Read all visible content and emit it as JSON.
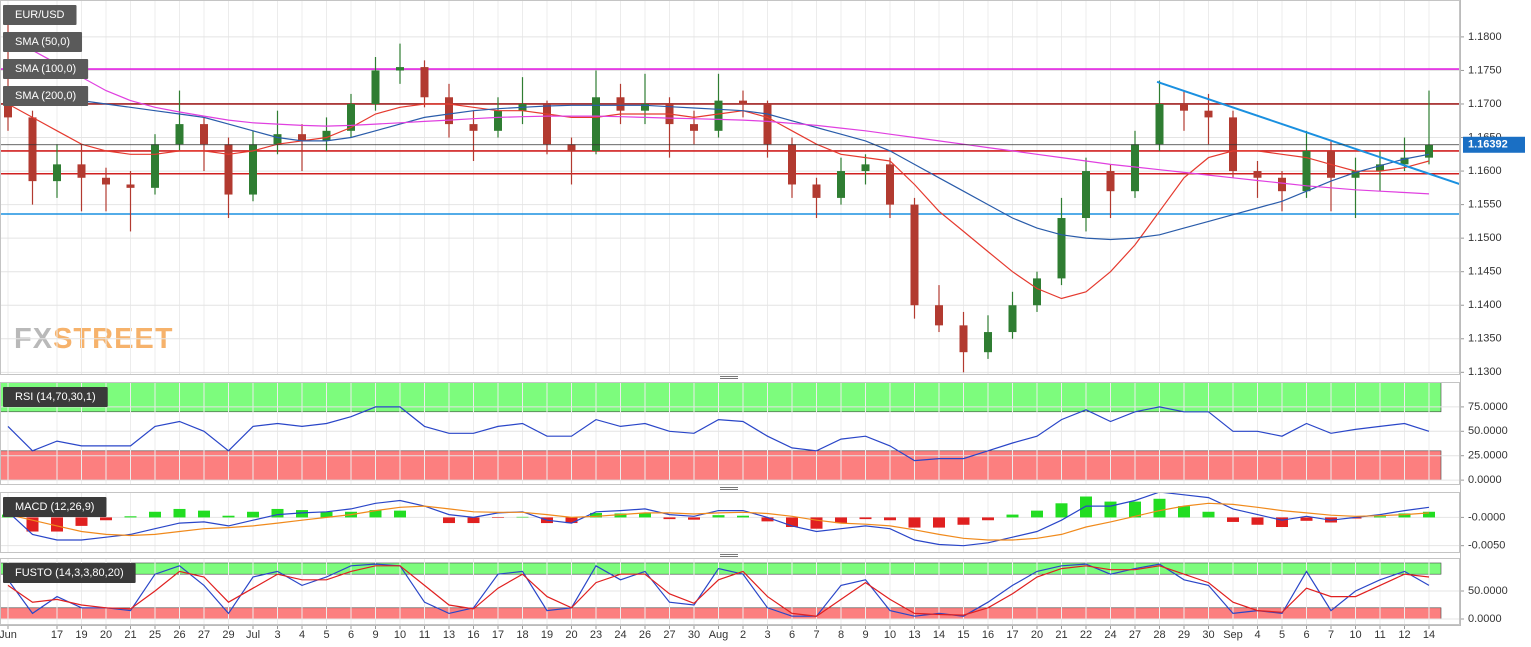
{
  "chart_data": [
    {
      "type": "candlestick",
      "title": "EUR/USD",
      "categories": [
        "Jun",
        null,
        "17",
        "19",
        "20",
        "21",
        "25",
        "26",
        "27",
        "29",
        "Jul",
        "3",
        "4",
        "5",
        "6",
        "9",
        "10",
        "11",
        "13",
        "16",
        "17",
        "18",
        "19",
        "20",
        "23",
        "24",
        "26",
        "27",
        "30",
        "Aug",
        "2",
        "3",
        "6",
        "7",
        "8",
        "9",
        "10",
        "13",
        "14",
        "15",
        "16",
        "17",
        "20",
        "21",
        "22",
        "24",
        "27",
        "28",
        "29",
        "30",
        "Sep",
        "4",
        "5",
        "6",
        "7",
        "10",
        "11",
        "12",
        "14"
      ],
      "open": [
        1.171,
        1.168,
        1.1585,
        1.161,
        1.159,
        1.158,
        1.1575,
        1.164,
        1.167,
        1.164,
        1.1565,
        1.164,
        1.1655,
        1.1645,
        1.166,
        1.17,
        1.175,
        1.1755,
        1.171,
        1.167,
        1.166,
        1.169,
        1.17,
        1.164,
        1.163,
        1.171,
        1.169,
        1.17,
        1.167,
        1.166,
        1.1705,
        1.17,
        1.164,
        1.158,
        1.156,
        1.16,
        1.161,
        1.155,
        1.14,
        1.137,
        1.133,
        1.136,
        1.14,
        1.144,
        1.153,
        1.16,
        1.157,
        1.164,
        1.17,
        1.169,
        1.168,
        1.16,
        1.159,
        1.157,
        1.163,
        1.159,
        1.16,
        1.161,
        1.162
      ],
      "high": [
        1.1835,
        1.169,
        1.164,
        1.164,
        1.1605,
        1.16,
        1.1655,
        1.172,
        1.168,
        1.165,
        1.166,
        1.169,
        1.167,
        1.168,
        1.1715,
        1.177,
        1.179,
        1.1765,
        1.173,
        1.169,
        1.171,
        1.174,
        1.1705,
        1.165,
        1.175,
        1.173,
        1.1745,
        1.171,
        1.169,
        1.1745,
        1.172,
        1.1705,
        1.165,
        1.159,
        1.162,
        1.1625,
        1.162,
        1.156,
        1.143,
        1.139,
        1.1385,
        1.142,
        1.145,
        1.156,
        1.162,
        1.161,
        1.166,
        1.1735,
        1.172,
        1.1715,
        1.169,
        1.1615,
        1.16,
        1.166,
        1.1645,
        1.162,
        1.163,
        1.165,
        1.172
      ],
      "low": [
        1.166,
        1.155,
        1.156,
        1.154,
        1.154,
        1.151,
        1.1565,
        1.163,
        1.16,
        1.153,
        1.1555,
        1.1625,
        1.16,
        1.163,
        1.165,
        1.169,
        1.173,
        1.1695,
        1.165,
        1.1615,
        1.165,
        1.167,
        1.1625,
        1.158,
        1.1625,
        1.167,
        1.167,
        1.162,
        1.164,
        1.165,
        1.168,
        1.162,
        1.156,
        1.153,
        1.155,
        1.158,
        1.153,
        1.138,
        1.136,
        1.13,
        1.132,
        1.135,
        1.139,
        1.143,
        1.151,
        1.153,
        1.156,
        1.163,
        1.166,
        1.164,
        1.159,
        1.156,
        1.154,
        1.156,
        1.154,
        1.153,
        1.157,
        1.16,
        1.161
      ],
      "close": [
        1.168,
        1.1585,
        1.161,
        1.159,
        1.158,
        1.1575,
        1.164,
        1.167,
        1.164,
        1.1565,
        1.164,
        1.1655,
        1.1645,
        1.166,
        1.17,
        1.175,
        1.1755,
        1.171,
        1.167,
        1.166,
        1.169,
        1.17,
        1.164,
        1.163,
        1.171,
        1.169,
        1.17,
        1.167,
        1.166,
        1.1705,
        1.17,
        1.164,
        1.158,
        1.156,
        1.16,
        1.161,
        1.155,
        1.14,
        1.137,
        1.133,
        1.136,
        1.14,
        1.144,
        1.153,
        1.16,
        1.157,
        1.164,
        1.17,
        1.169,
        1.168,
        1.16,
        1.159,
        1.157,
        1.163,
        1.159,
        1.16,
        1.161,
        1.162,
        1.1639
      ],
      "up_color": "#2f7d32",
      "down_color": "#b23a30",
      "series": [
        {
          "name": "SMA (50,0)",
          "color": "#e53a2f",
          "values": [
            1.17,
            1.168,
            1.166,
            1.164,
            1.163,
            1.1625,
            1.1625,
            1.163,
            1.163,
            1.1625,
            1.163,
            1.164,
            1.1645,
            1.165,
            1.1665,
            1.1685,
            1.1695,
            1.17,
            1.17,
            1.1695,
            1.169,
            1.169,
            1.1685,
            1.168,
            1.168,
            1.1685,
            1.1685,
            1.1685,
            1.168,
            1.1685,
            1.169,
            1.168,
            1.166,
            1.164,
            1.1625,
            1.162,
            1.1615,
            1.158,
            1.154,
            1.151,
            1.148,
            1.145,
            1.1425,
            1.141,
            1.142,
            1.145,
            1.149,
            1.154,
            1.159,
            1.162,
            1.163,
            1.163,
            1.1625,
            1.162,
            1.161,
            1.16,
            1.16,
            1.1605,
            1.1615
          ]
        },
        {
          "name": "SMA (100,0)",
          "color": "#2a5caa",
          "values": [
            1.172,
            1.1715,
            1.171,
            1.1705,
            1.17,
            1.1695,
            1.169,
            1.1685,
            1.168,
            1.167,
            1.166,
            1.165,
            1.1645,
            1.1645,
            1.165,
            1.166,
            1.167,
            1.168,
            1.1685,
            1.169,
            1.1693,
            1.1695,
            1.1697,
            1.1698,
            1.1698,
            1.1698,
            1.1698,
            1.1696,
            1.1694,
            1.1692,
            1.169,
            1.1685,
            1.1675,
            1.1665,
            1.1655,
            1.1645,
            1.163,
            1.161,
            1.159,
            1.157,
            1.155,
            1.153,
            1.1515,
            1.1505,
            1.15,
            1.1498,
            1.15,
            1.1505,
            1.1515,
            1.1525,
            1.1535,
            1.1545,
            1.1555,
            1.157,
            1.1585,
            1.1598,
            1.1608,
            1.1618,
            1.1625
          ]
        },
        {
          "name": "SMA (200,0)",
          "color": "#e040e0",
          "values": [
            1.18,
            1.178,
            1.176,
            1.174,
            1.172,
            1.1705,
            1.1695,
            1.1688,
            1.1682,
            1.1676,
            1.1672,
            1.167,
            1.1668,
            1.1667,
            1.1668,
            1.167,
            1.1672,
            1.1674,
            1.1676,
            1.1678,
            1.168,
            1.1681,
            1.1682,
            1.1682,
            1.1682,
            1.1681,
            1.168,
            1.1679,
            1.1678,
            1.1677,
            1.1676,
            1.1674,
            1.1671,
            1.1668,
            1.1664,
            1.166,
            1.1655,
            1.165,
            1.1645,
            1.164,
            1.1635,
            1.163,
            1.1625,
            1.162,
            1.1615,
            1.161,
            1.1606,
            1.1602,
            1.1598,
            1.1594,
            1.159,
            1.1586,
            1.1582,
            1.1578,
            1.1575,
            1.1572,
            1.157,
            1.1568,
            1.1566
          ]
        }
      ],
      "levels": [
        {
          "value": 1.1752,
          "color": "#e020e0"
        },
        {
          "value": 1.17,
          "color": "#a02020"
        },
        {
          "value": 1.163,
          "color": "#d02020"
        },
        {
          "value": 1.1596,
          "color": "#d02020"
        },
        {
          "value": 1.1536,
          "color": "#1a90e0"
        }
      ],
      "trendlines": [
        {
          "x": [
            46.9,
            59.3
          ],
          "y": [
            1.1733,
            1.158
          ],
          "color": "#1a90e0"
        }
      ],
      "last_price": 1.16392,
      "last_color": "#1a6fc4",
      "logo": [
        "FX",
        "STREET"
      ],
      "ylim": [
        1.1296,
        1.1855
      ],
      "yticks": [
        {
          "value": 1.13,
          "label": "1.1300"
        },
        {
          "value": 1.135,
          "label": "1.1350"
        },
        {
          "value": 1.14,
          "label": "1.1400"
        },
        {
          "value": 1.145,
          "label": "1.1450"
        },
        {
          "value": 1.15,
          "label": "1.1500"
        },
        {
          "value": 1.155,
          "label": "1.1550"
        },
        {
          "value": 1.16,
          "label": "1.1600"
        },
        {
          "value": 1.165,
          "label": "1.1650"
        },
        {
          "value": 1.17,
          "label": "1.1700"
        },
        {
          "value": 1.175,
          "label": "1.1750"
        },
        {
          "value": 1.18,
          "label": "1.1800"
        }
      ],
      "grid": true
    },
    {
      "type": "line",
      "title": "RSI (14,70,30,1)",
      "series": [
        {
          "color": "#2a46c8",
          "values": [
            55,
            30,
            40,
            35,
            35,
            35,
            55,
            60,
            50,
            30,
            55,
            58,
            55,
            58,
            65,
            75,
            75,
            55,
            48,
            48,
            55,
            58,
            45,
            45,
            62,
            55,
            58,
            50,
            48,
            62,
            60,
            45,
            33,
            30,
            42,
            45,
            35,
            20,
            22,
            22,
            30,
            38,
            45,
            62,
            72,
            60,
            70,
            75,
            70,
            70,
            50,
            50,
            45,
            58,
            48,
            52,
            55,
            58,
            50
          ]
        }
      ],
      "zones": [
        {
          "from": 70,
          "to": 100,
          "color": "#7dfc7d"
        },
        {
          "from": 0,
          "to": 30,
          "color": "#fc7f7f"
        }
      ],
      "ylim": [
        -5,
        100.5
      ],
      "yticks": [
        {
          "value": 0,
          "label": "0.0000"
        },
        {
          "value": 25,
          "label": "25.0000"
        },
        {
          "value": 50,
          "label": "50.0000"
        },
        {
          "value": 75,
          "label": "75.0000"
        }
      ],
      "grid": true
    },
    {
      "type": "macd",
      "title": "MACD (12,26,9)",
      "series": [
        {
          "color": "#2a46c8",
          "values": [
            0.001,
            -0.003,
            -0.004,
            -0.004,
            -0.0035,
            -0.003,
            -0.002,
            -0.001,
            -0.0008,
            -0.0015,
            -0.0005,
            0.0005,
            0.0008,
            0.001,
            0.0015,
            0.0025,
            0.003,
            0.002,
            0.0005,
            0.0,
            0.0008,
            0.001,
            -0.0005,
            -0.001,
            0.001,
            0.0012,
            0.0015,
            0.0005,
            0.0002,
            0.0012,
            0.0012,
            0.0,
            -0.0015,
            -0.0025,
            -0.002,
            -0.0015,
            -0.002,
            -0.004,
            -0.0048,
            -0.005,
            -0.0045,
            -0.0035,
            -0.0025,
            -0.0005,
            0.002,
            0.002,
            0.003,
            0.0045,
            0.004,
            0.0035,
            0.0015,
            0.0005,
            -0.0005,
            0.0002,
            -0.0005,
            0.0,
            0.0005,
            0.0012,
            0.0018
          ]
        },
        {
          "color": "#f08a1c",
          "values": [
            0.0005,
            -0.0005,
            -0.0015,
            -0.0025,
            -0.003,
            -0.0032,
            -0.003,
            -0.0025,
            -0.002,
            -0.0018,
            -0.0015,
            -0.001,
            -0.0005,
            0.0,
            0.0005,
            0.0012,
            0.0018,
            0.002,
            0.0015,
            0.001,
            0.0009,
            0.0009,
            0.0005,
            0.0,
            0.0002,
            0.0005,
            0.0008,
            0.0008,
            0.0006,
            0.0008,
            0.0009,
            0.0007,
            0.0002,
            -0.0005,
            -0.001,
            -0.0012,
            -0.0015,
            -0.0022,
            -0.003,
            -0.0037,
            -0.004,
            -0.004,
            -0.0037,
            -0.003,
            -0.0017,
            -0.0008,
            0.0002,
            0.0012,
            0.002,
            0.0025,
            0.0023,
            0.0018,
            0.0012,
            0.0008,
            0.0004,
            0.0002,
            0.0003,
            0.0005,
            0.0008
          ]
        }
      ],
      "histogram": [
        0.0005,
        -0.0025,
        -0.0025,
        -0.0015,
        -0.0005,
        0.0002,
        0.001,
        0.0015,
        0.0012,
        0.0003,
        0.001,
        0.0015,
        0.0013,
        0.001,
        0.001,
        0.0013,
        0.0012,
        0.0,
        -0.001,
        -0.001,
        -0.0001,
        0.0001,
        -0.001,
        -0.001,
        0.0008,
        0.0007,
        0.0007,
        -0.0003,
        -0.0004,
        0.0004,
        0.0003,
        -0.0007,
        -0.0017,
        -0.002,
        -0.001,
        -0.0003,
        -0.0005,
        -0.0018,
        -0.0018,
        -0.0013,
        -0.0005,
        0.0005,
        0.0012,
        0.0025,
        0.0037,
        0.0028,
        0.0028,
        0.0033,
        0.002,
        0.001,
        -0.0008,
        -0.0013,
        -0.0017,
        -0.0006,
        -0.0009,
        -0.0002,
        0.0002,
        0.0007,
        0.001
      ],
      "hist_colors": [
        "#22dd22",
        "#e02020"
      ],
      "ylim": [
        -0.0063,
        0.0045
      ],
      "yticks": [
        {
          "value": 0,
          "label": "-0.0000"
        },
        {
          "value": -0.005,
          "label": "-0.0050"
        }
      ],
      "grid": true
    },
    {
      "type": "line",
      "title": "FUSTO (14,3,3,80,20)",
      "series": [
        {
          "color": "#2a46c8",
          "values": [
            70,
            10,
            40,
            20,
            20,
            15,
            80,
            95,
            60,
            10,
            75,
            85,
            60,
            75,
            95,
            98,
            95,
            30,
            10,
            20,
            80,
            85,
            15,
            20,
            95,
            70,
            85,
            30,
            25,
            90,
            80,
            20,
            5,
            5,
            60,
            70,
            15,
            5,
            10,
            5,
            30,
            60,
            85,
            95,
            98,
            80,
            90,
            98,
            70,
            60,
            10,
            15,
            10,
            85,
            15,
            50,
            70,
            85,
            60
          ]
        },
        {
          "color": "#e02020",
          "values": [
            60,
            30,
            35,
            25,
            20,
            18,
            50,
            85,
            75,
            30,
            55,
            80,
            70,
            70,
            85,
            95,
            95,
            60,
            25,
            18,
            55,
            80,
            40,
            20,
            65,
            80,
            80,
            45,
            28,
            70,
            85,
            40,
            10,
            5,
            35,
            65,
            35,
            10,
            8,
            7,
            20,
            45,
            75,
            90,
            95,
            88,
            88,
            95,
            80,
            65,
            30,
            15,
            12,
            55,
            40,
            40,
            60,
            80,
            75
          ]
        }
      ],
      "zones": [
        {
          "from": 80,
          "to": 100,
          "color": "#7dfc7d"
        },
        {
          "from": 0,
          "to": 20,
          "color": "#fc7f7f"
        }
      ],
      "ylim": [
        -10.7,
        108.9
      ],
      "yticks": [
        {
          "value": 0,
          "label": "0.0000"
        },
        {
          "value": 50,
          "label": "50.0000"
        }
      ],
      "grid": true
    }
  ]
}
